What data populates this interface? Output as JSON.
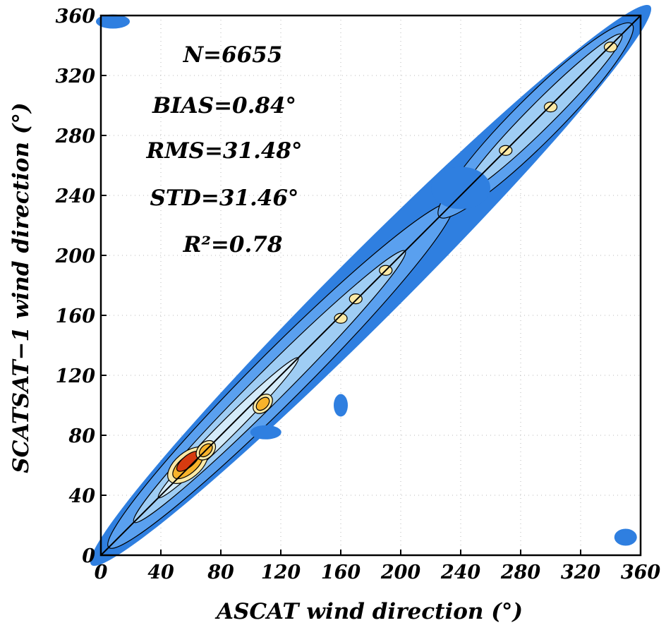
{
  "chart_data": {
    "type": "heatmap",
    "title": "",
    "xlabel": "ASCAT wind direction (°)",
    "ylabel": "SCATSAT−1 wind direction (°)",
    "xlim": [
      0,
      360
    ],
    "ylim": [
      0,
      360
    ],
    "x_ticks": [
      "0",
      "40",
      "80",
      "120",
      "160",
      "200",
      "240",
      "280",
      "320",
      "360"
    ],
    "y_ticks": [
      "0",
      "40",
      "80",
      "120",
      "160",
      "200",
      "240",
      "280",
      "320",
      "360"
    ],
    "grid": true,
    "stats": {
      "n": "N=6655",
      "bias": "BIAS=0.84°",
      "rms": "RMS=31.48°",
      "std": "STD=31.46°",
      "r2": "R²=0.78"
    },
    "reference_line": {
      "from": [
        0,
        0
      ],
      "to": [
        360,
        360
      ]
    },
    "density_peaks": [
      {
        "x": 58,
        "y": 60,
        "level": "max"
      },
      {
        "x": 70,
        "y": 70,
        "level": "high"
      },
      {
        "x": 108,
        "y": 101,
        "level": "high"
      },
      {
        "x": 160,
        "y": 158,
        "level": "medium"
      },
      {
        "x": 170,
        "y": 171,
        "level": "medium"
      },
      {
        "x": 190,
        "y": 190,
        "level": "medium"
      },
      {
        "x": 270,
        "y": 270,
        "level": "medium"
      },
      {
        "x": 300,
        "y": 299,
        "level": "medium"
      },
      {
        "x": 340,
        "y": 339,
        "level": "medium"
      }
    ],
    "colors": {
      "band_outer": "#2f7fe0",
      "band_mid": "#5aa0ef",
      "band_inner": "#9fcdf4",
      "band_core": "#d4ebf9",
      "peak_low": "#fbe9a6",
      "peak_mid": "#f7b32b",
      "peak_high": "#e8751a",
      "peak_max": "#d63b10",
      "grid": "#b9b9b9",
      "line": "#000000"
    }
  }
}
